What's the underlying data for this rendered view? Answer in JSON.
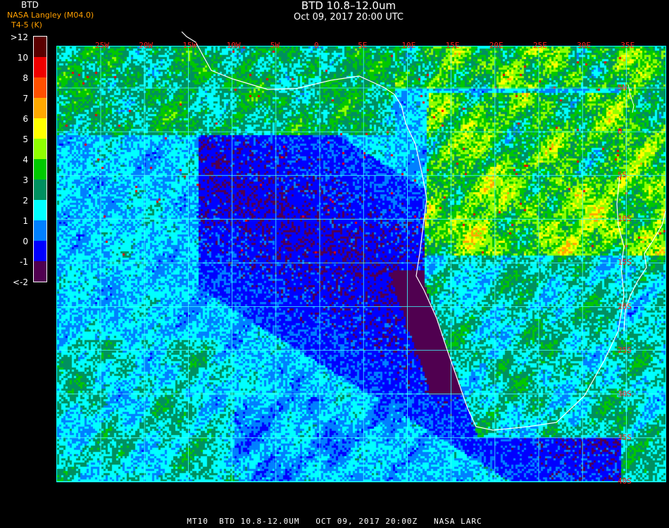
{
  "header": {
    "title": "BTD 10.8–12.0um",
    "subtitle": "Oct 09, 2017 20:00 UTC",
    "credit": "NASA Langley (M04.0)",
    "legend_title": "BTD",
    "legend_units": "T4-5 (K)"
  },
  "legend": {
    "labels": [
      ">12",
      "10",
      "8",
      "7",
      "6",
      "5",
      "4",
      "3",
      "2",
      "1",
      "0",
      "-1",
      "<-2"
    ],
    "colors": [
      "#5a0000",
      "#f00000",
      "#ff5000",
      "#ffa800",
      "#ffff00",
      "#90ff00",
      "#00c800",
      "#009060",
      "#00ffff",
      "#0080ff",
      "#0000ff",
      "#500050"
    ]
  },
  "map": {
    "longitude_labels": [
      "25W",
      "20W",
      "15W",
      "10W",
      "5W",
      "0",
      "5E",
      "10E",
      "15E",
      "20E",
      "25E",
      "30E",
      "35E"
    ],
    "latitude_labels": [
      "5N",
      "0",
      "5S",
      "10S",
      "15S",
      "20S",
      "25S",
      "30S",
      "35S",
      "40S"
    ],
    "grid_color": "#40ffff",
    "coastline_color": "#ffffff",
    "label_color": "#ff2020"
  },
  "footer": {
    "text": "MT10  BTD 10.8-12.0UM   OCT 09, 2017 20:00Z   NASA LARC"
  }
}
